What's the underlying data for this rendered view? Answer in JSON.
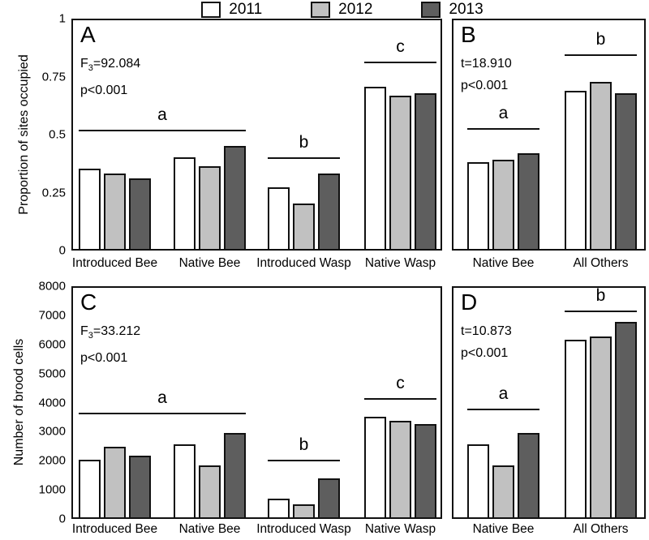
{
  "figure": {
    "legend": {
      "position": "top-center",
      "items": [
        {
          "label": "2011",
          "color": "#ffffff"
        },
        {
          "label": "2012",
          "color": "#c1c1c1"
        },
        {
          "label": "2013",
          "color": "#5e5e5e"
        }
      ]
    }
  },
  "chart_data": [
    {
      "type": "bar",
      "panel": "A",
      "stats": {
        "stat_base": "F",
        "stat_sub": "3",
        "stat_rest": "=92.084",
        "p_value": "p<0.001"
      },
      "ylabel": "Proportion of sites occupied",
      "ylim": [
        0,
        1
      ],
      "yticks": [
        {
          "value": 0,
          "label": "0"
        },
        {
          "value": 0.25,
          "label": "0.25"
        },
        {
          "value": 0.5,
          "label": "0.5"
        },
        {
          "value": 0.75,
          "label": "0.75"
        },
        {
          "value": 1,
          "label": "1"
        }
      ],
      "categories": [
        "Introduced Bee",
        "Native Bee",
        "Introduced Wasp",
        "Native Wasp"
      ],
      "series": [
        {
          "name": "2011",
          "values": [
            0.35,
            0.4,
            0.27,
            0.71
          ]
        },
        {
          "name": "2012",
          "values": [
            0.33,
            0.36,
            0.2,
            0.67
          ]
        },
        {
          "name": "2013",
          "values": [
            0.31,
            0.45,
            0.33,
            0.68
          ]
        }
      ],
      "significance": [
        {
          "letter": "a",
          "from_group": 0,
          "to_group": 1,
          "line_value": 0.52
        },
        {
          "letter": "b",
          "from_group": 2,
          "to_group": 2,
          "line_value": 0.4
        },
        {
          "letter": "c",
          "from_group": 3,
          "to_group": 3,
          "line_value": 0.82
        }
      ]
    },
    {
      "type": "bar",
      "panel": "B",
      "stats": {
        "stat_base": "t",
        "stat_sub": "",
        "stat_rest": "=18.910",
        "p_value": "p<0.001"
      },
      "ylabel": "",
      "ylim": [
        0,
        1
      ],
      "yticks": [],
      "categories": [
        "Native Bee",
        "All Others"
      ],
      "series": [
        {
          "name": "2011",
          "values": [
            0.38,
            0.69
          ]
        },
        {
          "name": "2012",
          "values": [
            0.39,
            0.73
          ]
        },
        {
          "name": "2013",
          "values": [
            0.42,
            0.68
          ]
        }
      ],
      "significance": [
        {
          "letter": "a",
          "from_group": 0,
          "to_group": 0,
          "line_value": 0.53
        },
        {
          "letter": "b",
          "from_group": 1,
          "to_group": 1,
          "line_value": 0.85
        }
      ]
    },
    {
      "type": "bar",
      "panel": "C",
      "stats": {
        "stat_base": "F",
        "stat_sub": "3",
        "stat_rest": "=33.212",
        "p_value": "p<0.001"
      },
      "ylabel": "Number of brood cells",
      "ylim": [
        0,
        8000
      ],
      "yticks": [
        {
          "value": 0,
          "label": "0"
        },
        {
          "value": 1000,
          "label": "1000"
        },
        {
          "value": 2000,
          "label": "2000"
        },
        {
          "value": 3000,
          "label": "3000"
        },
        {
          "value": 4000,
          "label": "4000"
        },
        {
          "value": 5000,
          "label": "5000"
        },
        {
          "value": 6000,
          "label": "6000"
        },
        {
          "value": 7000,
          "label": "7000"
        },
        {
          "value": 8000,
          "label": "8000"
        }
      ],
      "categories": [
        "Introduced Bee",
        "Native Bee",
        "Introduced Wasp",
        "Native Wasp"
      ],
      "series": [
        {
          "name": "2011",
          "values": [
            2000,
            2550,
            650,
            3500
          ]
        },
        {
          "name": "2012",
          "values": [
            2450,
            1800,
            450,
            3350
          ]
        },
        {
          "name": "2013",
          "values": [
            2150,
            2950,
            1350,
            3250
          ]
        }
      ],
      "significance": [
        {
          "letter": "a",
          "from_group": 0,
          "to_group": 1,
          "line_value": 3650
        },
        {
          "letter": "b",
          "from_group": 2,
          "to_group": 2,
          "line_value": 2000
        },
        {
          "letter": "c",
          "from_group": 3,
          "to_group": 3,
          "line_value": 4150
        }
      ]
    },
    {
      "type": "bar",
      "panel": "D",
      "stats": {
        "stat_base": "t",
        "stat_sub": "",
        "stat_rest": "=10.873",
        "p_value": "p<0.001"
      },
      "ylabel": "",
      "ylim": [
        0,
        8000
      ],
      "yticks": [],
      "categories": [
        "Native Bee",
        "All Others"
      ],
      "series": [
        {
          "name": "2011",
          "values": [
            2550,
            6200
          ]
        },
        {
          "name": "2012",
          "values": [
            1800,
            6300
          ]
        },
        {
          "name": "2013",
          "values": [
            2950,
            6800
          ]
        }
      ],
      "significance": [
        {
          "letter": "a",
          "from_group": 0,
          "to_group": 0,
          "line_value": 3800
        },
        {
          "letter": "b",
          "from_group": 1,
          "to_group": 1,
          "line_value": 7200
        }
      ]
    }
  ]
}
